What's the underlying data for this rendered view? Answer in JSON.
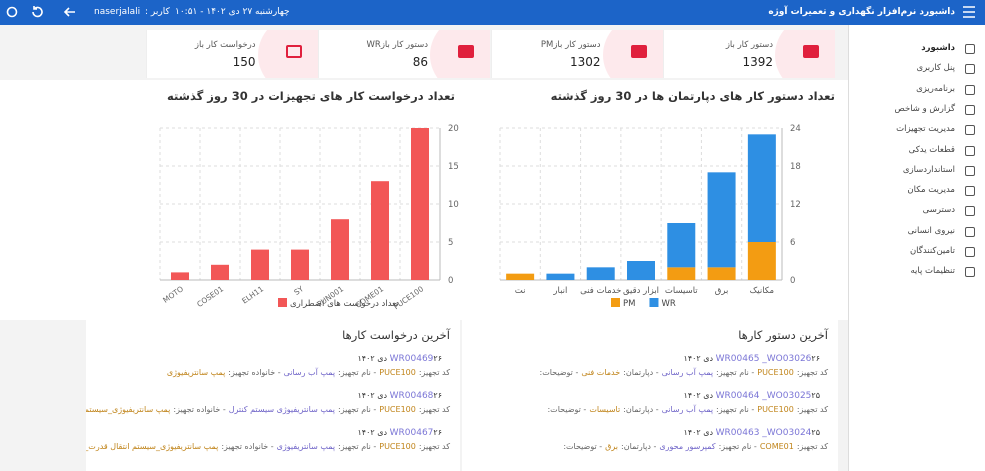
{
  "header": {
    "title": "داشبورد نرم‌افزار نگهداری و تعمیرات آوژه",
    "datetime": "چهارشنبه ۲۷ دی ۱۴۰۲ - ۱۰:۵۱",
    "user_label": "کاربر :",
    "user": "naserjalali"
  },
  "sidebar": {
    "items": [
      "داشبورد",
      "پنل کاربری",
      "برنامه‌ریزی",
      "گزارش و شاخص",
      "مدیریت تجهیزات",
      "قطعات یدکی",
      "استانداردسازی",
      "مدیریت مکان",
      "دسترسی",
      "نیروی انسانی",
      "تامین‌کنندگان",
      "تنظیمات پایه"
    ]
  },
  "stats": [
    {
      "label": "دستور کار باز",
      "value": 1392
    },
    {
      "label": "دستور کار بازPM",
      "value": 1302
    },
    {
      "label": "دستور کار بازWR",
      "value": 86
    },
    {
      "label": "درخواست کار باز",
      "value": 150
    }
  ],
  "chart_data": [
    {
      "type": "bar",
      "stacked": true,
      "title": "تعداد دستور کار های دپارتمان ها در 30 روز گذشته",
      "categories": [
        "نت",
        "انبار",
        "خدمات فنی",
        "ابزار دقیق",
        "تاسیسات",
        "برق",
        "مکانیک"
      ],
      "series": [
        {
          "name": "PM",
          "color": "#f39c12",
          "values": [
            1,
            0,
            0,
            0,
            2,
            2,
            6
          ]
        },
        {
          "name": "WR",
          "color": "#2e8fe3",
          "values": [
            0,
            1,
            2,
            3,
            7,
            15,
            17
          ]
        }
      ],
      "ylim": [
        0,
        24
      ],
      "yticks": [
        0,
        6,
        12,
        18,
        24
      ],
      "grid": true
    },
    {
      "type": "bar",
      "title": "تعداد درخواست کار های تجهیزات در 30 روز گذشته",
      "categories": [
        "MOTO",
        "COSE01",
        "ELH11",
        "SY",
        "PUN001",
        "COME01",
        "PUCE100"
      ],
      "series": [
        {
          "name": "تعداد درخواست های اضطراری",
          "color": "#f25757",
          "values": [
            1,
            2,
            4,
            4,
            8,
            13,
            20
          ]
        }
      ],
      "ylim": [
        0,
        20
      ],
      "yticks": [
        0,
        5,
        10,
        15,
        20
      ],
      "grid": true
    }
  ],
  "work_orders": {
    "title": "آخرین دستور کارها",
    "items": [
      {
        "code": "WR00465 _WO03026",
        "date": "۲۶ دی ۱۴۰۲",
        "details": [
          {
            "k": "کد تجهیز:",
            "v": "PUCE100"
          },
          {
            "k": "- نام تجهیز:",
            "v": "پمپ آب رسانی"
          },
          {
            "k": "- دپارتمان:",
            "v": "خدمات فنی"
          },
          {
            "k": "- توضیحات:",
            "v": ""
          }
        ]
      },
      {
        "code": "WR00464 _WO03025",
        "date": "۲۵ دی ۱۴۰۲",
        "details": [
          {
            "k": "کد تجهیز:",
            "v": "PUCE100"
          },
          {
            "k": "- نام تجهیز:",
            "v": "پمپ آب رسانی"
          },
          {
            "k": "- دپارتمان:",
            "v": "تاسیسات"
          },
          {
            "k": "- توضیحات:",
            "v": ""
          }
        ]
      },
      {
        "code": "WR00463 _WO03024",
        "date": "۲۵ دی ۱۴۰۲",
        "details": [
          {
            "k": "کد تجهیز:",
            "v": "COME01"
          },
          {
            "k": "- نام تجهیز:",
            "v": "کمپرسور محوری"
          },
          {
            "k": "- دپارتمان:",
            "v": "برق"
          },
          {
            "k": "- توضیحات:",
            "v": ""
          }
        ]
      }
    ]
  },
  "work_requests": {
    "title": "آخرین درخواست کارها",
    "items": [
      {
        "code": "WR00469",
        "date": "۲۶ دی ۱۴۰۲",
        "details": [
          {
            "k": "کد تجهیز:",
            "v": "PUCE100"
          },
          {
            "k": "- نام تجهیز:",
            "v": "پمپ آب رسانی"
          },
          {
            "k": "- خانواده تجهیز:",
            "v": "پمپ سانتریفیوژی"
          }
        ]
      },
      {
        "code": "WR00468",
        "date": "۲۶ دی ۱۴۰۲",
        "details": [
          {
            "k": "کد تجهیز:",
            "v": "PUCE100"
          },
          {
            "k": "- نام تجهیز:",
            "v": "پمپ سانتریفیوژی سیستم کنترل"
          },
          {
            "k": "- خانواده تجهیز:",
            "v": "پمپ سانتریفیوژی_سیستم کنترل_سیستم خنک/گرم کننده"
          }
        ]
      },
      {
        "code": "WR00467",
        "date": "۲۶ دی ۱۴۰۲",
        "details": [
          {
            "k": "کد تجهیز:",
            "v": "PUCE100"
          },
          {
            "k": "- نام تجهیز:",
            "v": "پمپ سانتریفیوژی"
          },
          {
            "k": "- خانواده تجهیز:",
            "v": "پمپ سانتریفیوژی_سیستم انتقال قدرت_کوپلینگ"
          }
        ]
      }
    ]
  }
}
